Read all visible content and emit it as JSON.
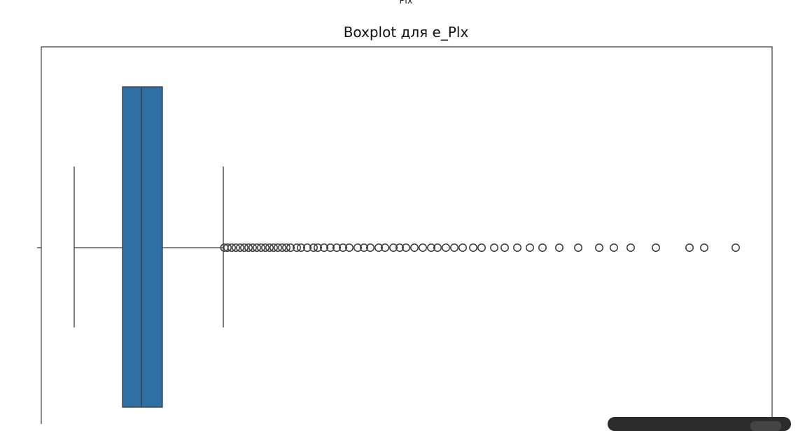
{
  "chart_data": {
    "type": "boxplot",
    "title": "Boxplot для e_Plx",
    "xlabel": "Plx",
    "ylabel": "",
    "orientation": "horizontal",
    "box": {
      "whisker_low": 5,
      "q1": 28,
      "median": 37,
      "q3": 47,
      "whisker_high": 76,
      "color": "#2f6fa3"
    },
    "outliers": [
      76.5,
      78,
      80,
      82,
      84,
      86,
      88,
      90,
      92,
      94,
      96,
      98,
      100,
      102,
      104,
      106,
      108,
      111,
      113,
      116,
      119,
      121,
      124,
      127,
      130,
      133,
      136,
      140,
      143,
      146,
      150,
      153,
      157,
      160,
      163,
      167,
      171,
      175,
      178,
      182,
      186,
      190,
      195,
      199,
      205,
      210,
      216,
      222,
      228,
      236,
      245,
      255,
      262,
      270,
      282,
      298,
      305,
      320
    ],
    "grid": false
  },
  "toast": {}
}
